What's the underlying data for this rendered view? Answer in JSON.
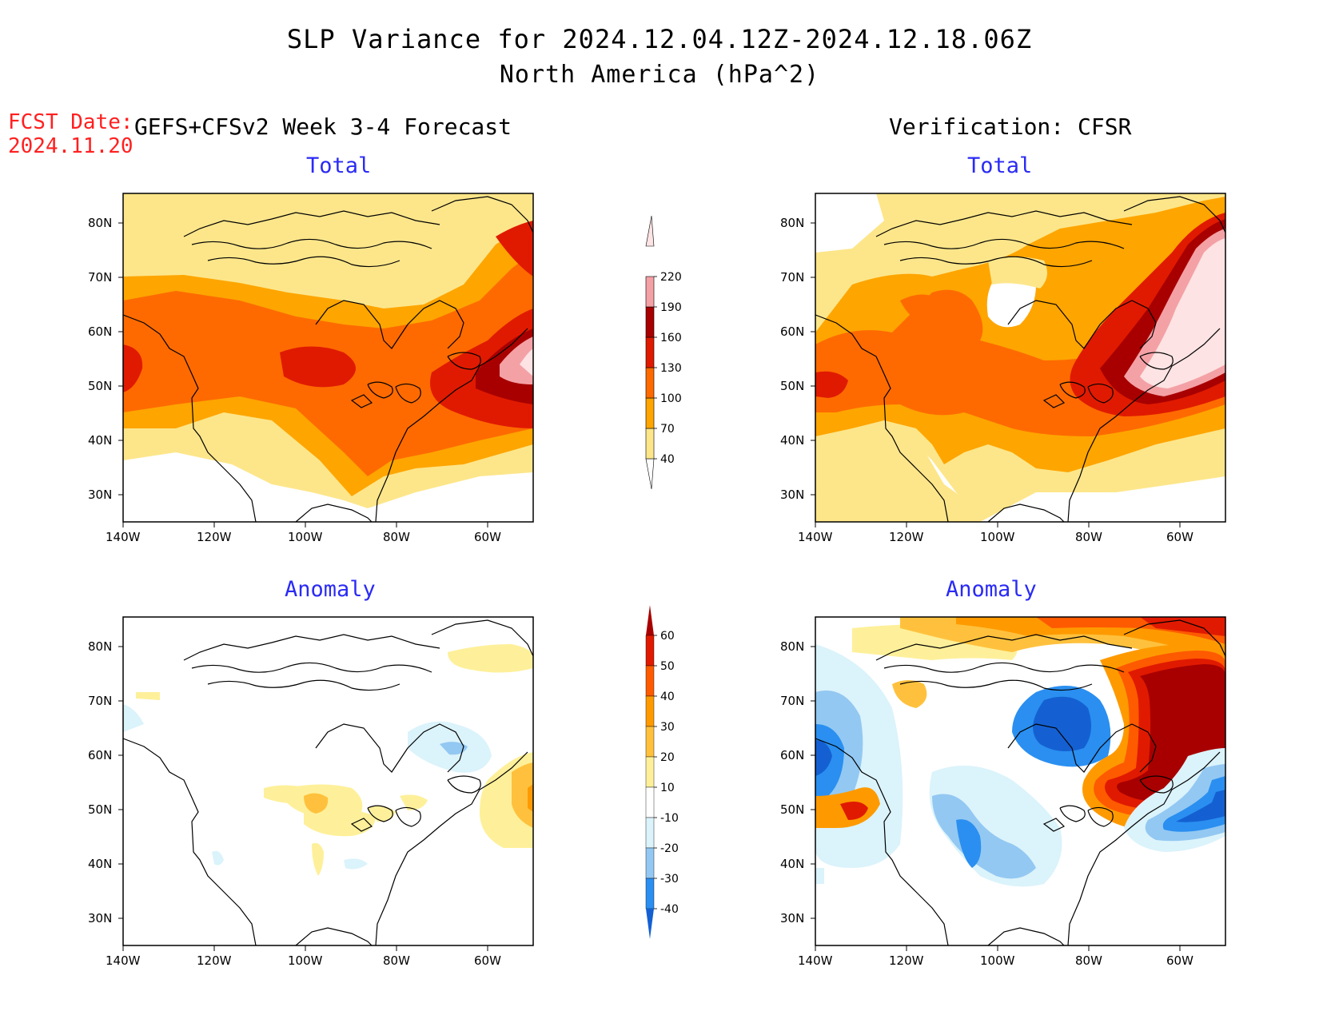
{
  "title": {
    "line1": "SLP Variance for 2024.12.04.12Z-2024.12.18.06Z",
    "line2": "North America (hPa^2)"
  },
  "fcst_date": {
    "label": "FCST Date:",
    "value": "2024.11.20"
  },
  "columns": {
    "forecast": "GEFS+CFSv2 Week 3-4 Forecast",
    "verification": "Verification: CFSR"
  },
  "panels": {
    "total_label": "Total",
    "anomaly_label": "Anomaly"
  },
  "axes": {
    "lat_ticks": [
      "80N",
      "70N",
      "60N",
      "50N",
      "40N",
      "30N"
    ],
    "lon_ticks": [
      "140W",
      "120W",
      "100W",
      "80W",
      "60W"
    ]
  },
  "colorbar_total": {
    "levels": [
      "40",
      "70",
      "100",
      "130",
      "160",
      "190",
      "220"
    ],
    "colors": [
      "#fde68a",
      "#fea500",
      "#fe6a00",
      "#e01a00",
      "#a80000",
      "#f4a1a6",
      "#fde3e3"
    ]
  },
  "colorbar_anomaly": {
    "levels": [
      "-40",
      "-30",
      "-20",
      "-10",
      "10",
      "20",
      "30",
      "40",
      "50",
      "60"
    ],
    "colors": [
      "#1460d2",
      "#2a8ff0",
      "#93c8f2",
      "#dbf3fb",
      "#ffffff",
      "#fef09a",
      "#ffc13d",
      "#fe9a00",
      "#fe5a00",
      "#e01a00",
      "#a80000"
    ]
  },
  "chart_data": [
    {
      "type": "heatmap",
      "panel": "forecast-total",
      "title": "Total",
      "units": "hPa^2",
      "xlim": [
        "140W",
        "50W"
      ],
      "ylim": [
        "25N",
        "85N"
      ],
      "features": [
        {
          "region": "northeast Canada / Labrador",
          "value_range": "160-220"
        },
        {
          "region": "Greenland east coast",
          "value_range": "130-160"
        },
        {
          "region": "central Canada / northern Plains",
          "value_range": "100-130"
        },
        {
          "region": "Canadian Arctic archipelago",
          "value_range": "40-70"
        },
        {
          "region": "southwestern US",
          "value_range": "<40"
        }
      ]
    },
    {
      "type": "heatmap",
      "panel": "verification-total",
      "title": "Total",
      "units": "hPa^2",
      "xlim": [
        "140W",
        "50W"
      ],
      "ylim": [
        "25N",
        "85N"
      ],
      "features": [
        {
          "region": "Labrador / Quebec / western Atlantic",
          "value_range": ">220"
        },
        {
          "region": "Great Lakes to Newfoundland band",
          "value_range": "160-220"
        },
        {
          "region": "Hudson Bay",
          "value_range": "<40"
        },
        {
          "region": "western Canada",
          "value_range": "70-130"
        },
        {
          "region": "southwestern US",
          "value_range": "<40"
        }
      ]
    },
    {
      "type": "heatmap",
      "panel": "forecast-anomaly",
      "title": "Anomaly",
      "units": "hPa^2",
      "xlim": [
        "140W",
        "50W"
      ],
      "ylim": [
        "25N",
        "85N"
      ],
      "features": [
        {
          "region": "northern Plains",
          "value_range": "10-30"
        },
        {
          "region": "Atlantic Canada",
          "value_range": "10-30"
        },
        {
          "region": "Hudson Bay east",
          "value_range": "-10 to -20"
        },
        {
          "region": "most of domain",
          "value_range": "-10 to 10"
        }
      ]
    },
    {
      "type": "heatmap",
      "panel": "verification-anomaly",
      "title": "Anomaly",
      "units": "hPa^2",
      "xlim": [
        "140W",
        "50W"
      ],
      "ylim": [
        "25N",
        "85N"
      ],
      "features": [
        {
          "region": "eastern Canada / Greenland",
          "value_range": ">60"
        },
        {
          "region": "Hudson Bay / Ontario",
          "value_range": "-30 to -40"
        },
        {
          "region": "western Atlantic off US east coast",
          "value_range": "-30 to -40"
        },
        {
          "region": "Pacific Northwest coast",
          "value_range": "40-60"
        },
        {
          "region": "Plains",
          "value_range": "-10 to -30"
        }
      ]
    }
  ]
}
